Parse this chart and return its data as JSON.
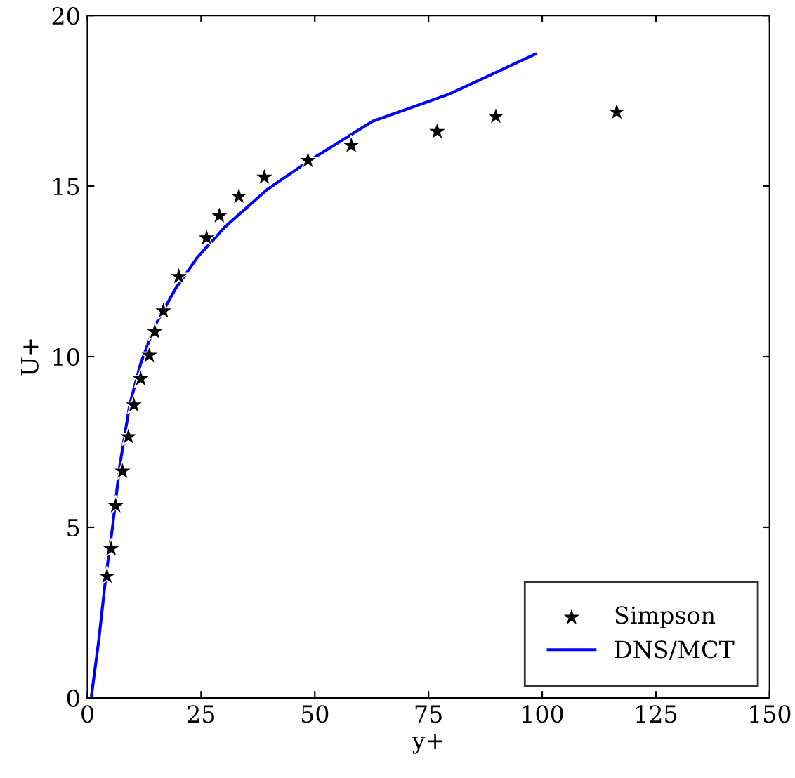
{
  "chart_data": {
    "type": "scatter",
    "xlabel": "y+",
    "ylabel": "U+",
    "xlim": [
      0,
      150
    ],
    "ylim": [
      0,
      20
    ],
    "xticks": [
      0,
      25,
      50,
      75,
      100,
      125,
      150
    ],
    "yticks": [
      0,
      5,
      10,
      15,
      20
    ],
    "grid": false,
    "legend": "bottom right",
    "series": [
      {
        "name": "Simpson",
        "marker": "star",
        "color": "#000000",
        "x": [
          4.3,
          5.2,
          6.2,
          7.7,
          9.0,
          10.2,
          11.7,
          13.6,
          14.8,
          16.7,
          20.1,
          26.2,
          29.0,
          33.3,
          38.9,
          48.5,
          58.0,
          76.9,
          89.8,
          116.4
        ],
        "values": [
          3.56,
          4.37,
          5.63,
          6.64,
          7.65,
          8.58,
          9.35,
          10.04,
          10.73,
          11.34,
          12.35,
          13.48,
          14.13,
          14.7,
          15.26,
          15.75,
          16.19,
          16.6,
          17.04,
          17.17
        ]
      },
      {
        "name": "DNS/MCT",
        "type": "line",
        "marker": "none",
        "line_style": "solid",
        "color": "#0000ff",
        "x": [
          0.9,
          2.5,
          4.0,
          5.6,
          7.1,
          9.3,
          11.7,
          14.8,
          19.4,
          24.1,
          30.2,
          39.5,
          48.8,
          62.7,
          79.6,
          98.5
        ],
        "values": [
          0.08,
          1.7,
          3.5,
          5.1,
          6.8,
          8.6,
          9.8,
          10.9,
          12.0,
          12.9,
          13.8,
          14.9,
          15.75,
          16.9,
          17.7,
          18.87
        ]
      }
    ]
  }
}
